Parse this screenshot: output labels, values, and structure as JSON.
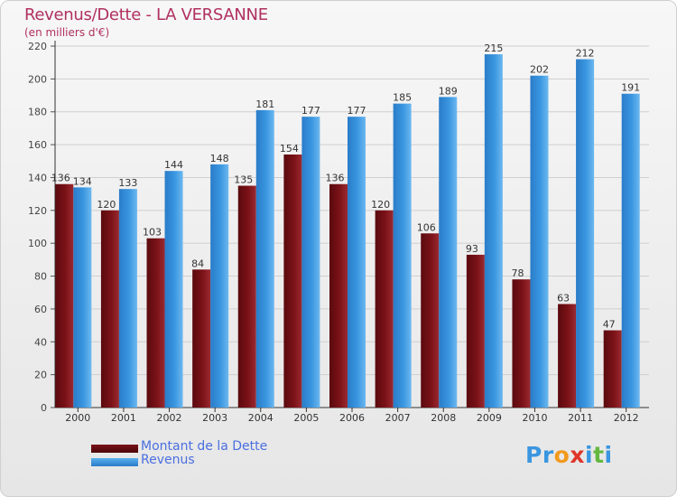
{
  "chart_data": {
    "type": "bar",
    "title": "Revenus/Dette - LA VERSANNE",
    "subtitle": "(en milliers d'€)",
    "categories": [
      "2000",
      "2001",
      "2002",
      "2003",
      "2004",
      "2005",
      "2006",
      "2007",
      "2008",
      "2009",
      "2010",
      "2011",
      "2012"
    ],
    "series": [
      {
        "name": "Montant de la Dette",
        "color": "#7a1218",
        "values": [
          136,
          120,
          103,
          84,
          135,
          154,
          136,
          120,
          106,
          93,
          78,
          63,
          47
        ]
      },
      {
        "name": "Revenus",
        "color": "#3a96e0",
        "values": [
          134,
          133,
          144,
          148,
          181,
          177,
          177,
          185,
          189,
          215,
          202,
          212,
          191
        ]
      }
    ],
    "ylim": [
      0,
      220
    ],
    "yticks": [
      0,
      20,
      40,
      60,
      80,
      100,
      120,
      140,
      160,
      180,
      200,
      220
    ],
    "grid": true,
    "legend": "bottom-left"
  },
  "brand": {
    "letters": [
      {
        "char": "P",
        "color": "#3a96e0"
      },
      {
        "char": "r",
        "color": "#3a96e0"
      },
      {
        "char": "o",
        "color": "#f29a1d"
      },
      {
        "char": "x",
        "color": "#e0342b"
      },
      {
        "char": "i",
        "color": "#3a96e0"
      },
      {
        "char": "t",
        "color": "#64b83f"
      },
      {
        "char": "i",
        "color": "#3a96e0"
      }
    ]
  }
}
